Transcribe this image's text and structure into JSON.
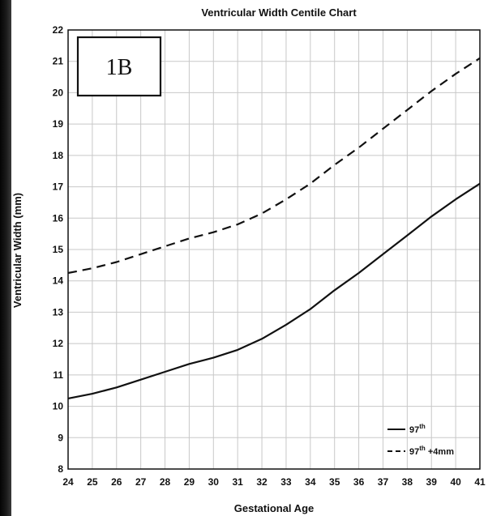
{
  "chart_data": {
    "type": "line",
    "title": "Ventricular Width Centile Chart",
    "panel_label": "1B",
    "xlabel": "Gestational Age",
    "ylabel": "Ventricular Width (mm)",
    "xlim": [
      24,
      41
    ],
    "ylim": [
      8,
      22
    ],
    "x_ticks": [
      24,
      25,
      26,
      27,
      28,
      29,
      30,
      31,
      32,
      33,
      34,
      35,
      36,
      37,
      38,
      39,
      40,
      41
    ],
    "y_ticks": [
      8,
      9,
      10,
      11,
      12,
      13,
      14,
      15,
      16,
      17,
      18,
      19,
      20,
      21,
      22
    ],
    "grid": true,
    "legend_position": "bottom-right",
    "series": [
      {
        "name": "97th",
        "style": "solid",
        "x": [
          24,
          25,
          26,
          27,
          28,
          29,
          30,
          31,
          32,
          33,
          34,
          35,
          36,
          37,
          38,
          39,
          40,
          41
        ],
        "values": [
          10.25,
          10.4,
          10.6,
          10.85,
          11.1,
          11.35,
          11.55,
          11.8,
          12.15,
          12.6,
          13.1,
          13.7,
          14.25,
          14.85,
          15.45,
          16.05,
          16.6,
          17.1
        ]
      },
      {
        "name": "97th +4mm",
        "style": "dashed",
        "x": [
          24,
          25,
          26,
          27,
          28,
          29,
          30,
          31,
          32,
          33,
          34,
          35,
          36,
          37,
          38,
          39,
          40,
          41
        ],
        "values": [
          14.25,
          14.4,
          14.6,
          14.85,
          15.1,
          15.35,
          15.55,
          15.8,
          16.15,
          16.6,
          17.1,
          17.7,
          18.25,
          18.85,
          19.45,
          20.05,
          20.6,
          21.1
        ]
      }
    ],
    "legend": [
      {
        "base": "97",
        "sup": "th",
        "suffix": ""
      },
      {
        "base": "97",
        "sup": "th",
        "suffix": " +4mm"
      }
    ],
    "colors": {
      "line": "#111111",
      "grid": "#c8c8c8",
      "axis": "#111111"
    }
  }
}
